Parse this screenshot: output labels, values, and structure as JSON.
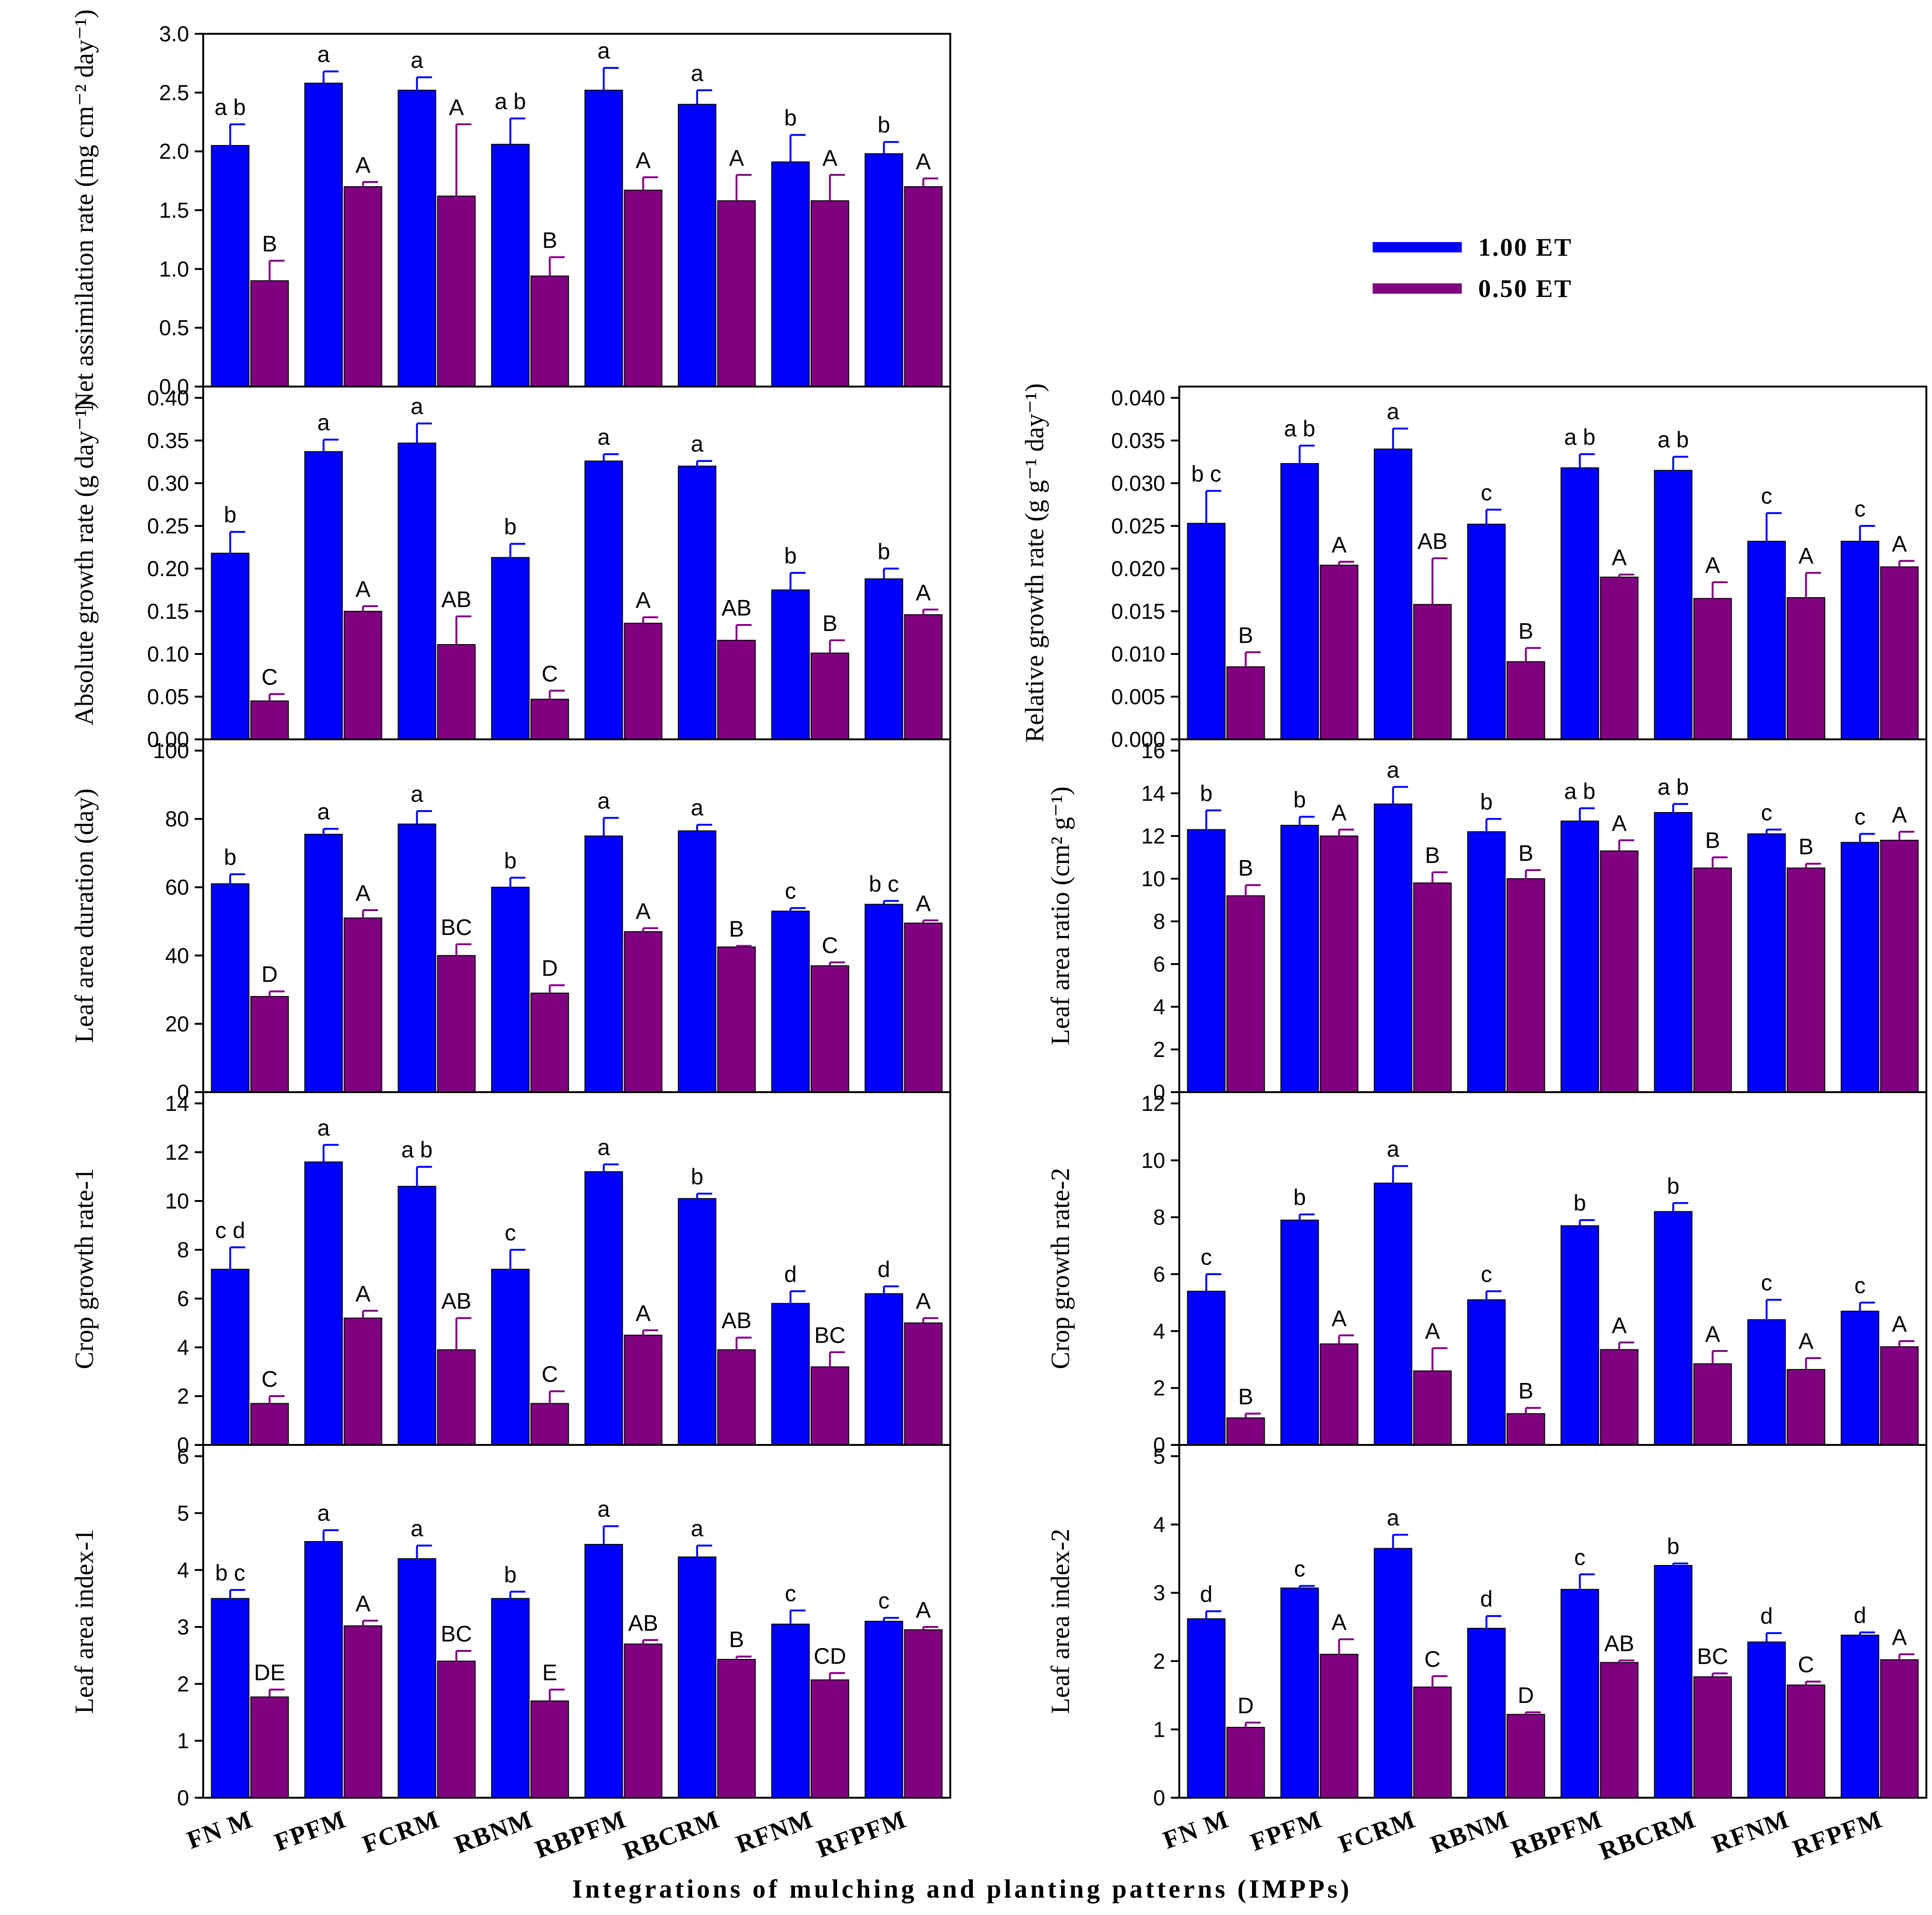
{
  "colors": {
    "series1": "#0000FF",
    "series2": "#800080",
    "axis": "#000000"
  },
  "chart_data": {
    "type": "bar",
    "x_title": "Integrations of mulching and planting patterns (IMPPs)",
    "categories": [
      "FN M",
      "FPFM",
      "FCRM",
      "RBNM",
      "RBPFM",
      "RBCRM",
      "RFNM",
      "RFPFM"
    ],
    "legend": [
      "1.00 ET",
      "0.50 ET"
    ],
    "panels": [
      {
        "id": "nar",
        "ylabel": "Net assimilation rate (mg cm⁻² day⁻¹)",
        "ylim": [
          0,
          3.0
        ],
        "ticks": [
          "0.0",
          "0.5",
          "1.0",
          "1.5",
          "2.0",
          "2.5",
          "3.0"
        ],
        "series": [
          {
            "name": "1.00 ET",
            "values": [
              2.05,
              2.58,
              2.52,
              2.06,
              2.52,
              2.4,
              1.91,
              1.98
            ],
            "err": [
              0.18,
              0.1,
              0.11,
              0.22,
              0.19,
              0.12,
              0.23,
              0.1
            ],
            "letters": [
              "a b",
              "a",
              "a",
              "a b",
              "a",
              "a",
              "b",
              "b"
            ]
          },
          {
            "name": "0.50 ET",
            "values": [
              0.9,
              1.7,
              1.62,
              0.94,
              1.67,
              1.58,
              1.58,
              1.7
            ],
            "err": [
              0.17,
              0.04,
              0.61,
              0.16,
              0.11,
              0.22,
              0.22,
              0.07
            ],
            "letters": [
              "B",
              "A",
              "A",
              "B",
              "A",
              "A",
              "A",
              "A"
            ]
          }
        ]
      },
      {
        "id": "rgr",
        "ylabel": "Relative growth rate (g g⁻¹ day⁻¹)",
        "ylim": [
          0,
          0.04
        ],
        "ticks": [
          "0.000",
          "0.005",
          "0.010",
          "0.015",
          "0.020",
          "0.025",
          "0.030",
          "0.035",
          "0.040"
        ],
        "series": [
          {
            "name": "1.00 ET",
            "values": [
              0.0253,
              0.0323,
              0.034,
              0.0252,
              0.0318,
              0.0315,
              0.0232,
              0.0232
            ],
            "err": [
              0.0038,
              0.0021,
              0.0024,
              0.0017,
              0.0016,
              0.0016,
              0.0033,
              0.0018
            ],
            "letters": [
              "b c",
              "a b",
              "a",
              "c",
              "a b",
              "a b",
              "c",
              "c"
            ]
          },
          {
            "name": "0.50 ET",
            "values": [
              0.0085,
              0.0204,
              0.0158,
              0.0091,
              0.019,
              0.0165,
              0.0166,
              0.0202
            ],
            "err": [
              0.0017,
              0.0004,
              0.0054,
              0.0016,
              0.0003,
              0.0019,
              0.0029,
              0.0007
            ],
            "letters": [
              "B",
              "A",
              "AB",
              "B",
              "A",
              "A",
              "A",
              "A"
            ]
          }
        ]
      },
      {
        "id": "agr",
        "ylabel": "Absolute growth rate (g day⁻¹)",
        "ylim": [
          0,
          0.4
        ],
        "ticks": [
          "0.00",
          "0.05",
          "0.10",
          "0.15",
          "0.20",
          "0.25",
          "0.30",
          "0.35",
          "0.40"
        ],
        "series": [
          {
            "name": "1.00 ET",
            "values": [
              0.218,
              0.337,
              0.347,
              0.213,
              0.326,
              0.32,
              0.175,
              0.188
            ],
            "err": [
              0.025,
              0.014,
              0.023,
              0.016,
              0.008,
              0.006,
              0.02,
              0.012
            ],
            "letters": [
              "b",
              "a",
              "a",
              "b",
              "a",
              "a",
              "b",
              "b"
            ]
          },
          {
            "name": "0.50 ET",
            "values": [
              0.045,
              0.15,
              0.111,
              0.047,
              0.136,
              0.116,
              0.101,
              0.146
            ],
            "err": [
              0.008,
              0.006,
              0.033,
              0.01,
              0.007,
              0.018,
              0.015,
              0.006
            ],
            "letters": [
              "C",
              "A",
              "AB",
              "C",
              "A",
              "AB",
              "B",
              "A"
            ]
          }
        ]
      },
      {
        "id": "lad",
        "ylabel": "Leaf area duration (day)",
        "ylim": [
          0,
          100
        ],
        "ticks": [
          "0",
          "20",
          "40",
          "60",
          "80",
          "100"
        ],
        "series": [
          {
            "name": "1.00 ET",
            "values": [
              61,
              75.5,
              78.5,
              60,
              75,
              76.5,
              53,
              55
            ],
            "err": [
              2.8,
              1.6,
              3.8,
              2.8,
              5.3,
              1.8,
              0.9,
              1.0
            ],
            "letters": [
              "b",
              "a",
              "a",
              "b",
              "a",
              "a",
              "c",
              "b c"
            ]
          },
          {
            "name": "0.50 ET",
            "values": [
              28,
              51,
              40,
              29,
              47,
              42.5,
              37,
              49.5
            ],
            "err": [
              1.5,
              2.3,
              3.3,
              2.3,
              1.0,
              0.3,
              1.0,
              0.8
            ],
            "letters": [
              "D",
              "A",
              "BC",
              "D",
              "A",
              "B",
              "C",
              "A"
            ]
          }
        ]
      },
      {
        "id": "lar",
        "ylabel": "Leaf area ratio (cm² g⁻¹)",
        "ylim": [
          0,
          16
        ],
        "ticks": [
          "0",
          "2",
          "4",
          "6",
          "8",
          "10",
          "12",
          "14",
          "16"
        ],
        "series": [
          {
            "name": "1.00 ET",
            "values": [
              12.3,
              12.5,
              13.5,
              12.2,
              12.7,
              13.1,
              12.1,
              11.7
            ],
            "err": [
              0.9,
              0.4,
              0.8,
              0.6,
              0.6,
              0.4,
              0.2,
              0.4
            ],
            "letters": [
              "b",
              "b",
              "a",
              "b",
              "a b",
              "a b",
              "c",
              "c"
            ]
          },
          {
            "name": "0.50 ET",
            "values": [
              9.2,
              12.0,
              9.8,
              10.0,
              11.3,
              10.5,
              10.5,
              11.8
            ],
            "err": [
              0.5,
              0.3,
              0.5,
              0.4,
              0.5,
              0.5,
              0.2,
              0.4
            ],
            "letters": [
              "B",
              "A",
              "B",
              "B",
              "A",
              "B",
              "B",
              "A"
            ]
          }
        ]
      },
      {
        "id": "cgr1",
        "ylabel": "Crop growth rate-1",
        "ylim": [
          0,
          14
        ],
        "ticks": [
          "0",
          "2",
          "4",
          "6",
          "8",
          "10",
          "12",
          "14"
        ],
        "series": [
          {
            "name": "1.00 ET",
            "values": [
              7.2,
              11.6,
              10.6,
              7.2,
              11.2,
              10.1,
              5.8,
              6.2
            ],
            "err": [
              0.9,
              0.7,
              0.8,
              0.8,
              0.3,
              0.2,
              0.5,
              0.3
            ],
            "letters": [
              "c d",
              "a",
              "a b",
              "c",
              "a",
              "b",
              "d",
              "d"
            ]
          },
          {
            "name": "0.50 ET",
            "values": [
              1.7,
              5.2,
              3.9,
              1.7,
              4.5,
              3.9,
              3.2,
              5.0
            ],
            "err": [
              0.3,
              0.3,
              1.3,
              0.5,
              0.2,
              0.5,
              0.6,
              0.2
            ],
            "letters": [
              "C",
              "A",
              "AB",
              "C",
              "A",
              "AB",
              "BC",
              "A"
            ]
          }
        ]
      },
      {
        "id": "cgr2",
        "ylabel": "Crop growth rate-2",
        "ylim": [
          0,
          12
        ],
        "ticks": [
          "0",
          "2",
          "4",
          "6",
          "8",
          "10",
          "12"
        ],
        "series": [
          {
            "name": "1.00 ET",
            "values": [
              5.4,
              7.9,
              9.2,
              5.1,
              7.7,
              8.2,
              4.4,
              4.7
            ],
            "err": [
              0.6,
              0.2,
              0.6,
              0.3,
              0.2,
              0.3,
              0.7,
              0.3
            ],
            "letters": [
              "c",
              "b",
              "a",
              "c",
              "b",
              "b",
              "c",
              "c"
            ]
          },
          {
            "name": "0.50 ET",
            "values": [
              0.95,
              3.55,
              2.6,
              1.1,
              3.35,
              2.85,
              2.65,
              3.45
            ],
            "err": [
              0.15,
              0.3,
              0.8,
              0.2,
              0.25,
              0.45,
              0.4,
              0.2
            ],
            "letters": [
              "B",
              "A",
              "A",
              "B",
              "A",
              "A",
              "A",
              "A"
            ]
          }
        ]
      },
      {
        "id": "lai1",
        "ylabel": "Leaf area index-1",
        "ylim": [
          0,
          6
        ],
        "ticks": [
          "0",
          "1",
          "2",
          "3",
          "4",
          "5",
          "6"
        ],
        "series": [
          {
            "name": "1.00 ET",
            "values": [
              3.5,
              4.5,
              4.2,
              3.5,
              4.45,
              4.23,
              3.05,
              3.1
            ],
            "err": [
              0.15,
              0.2,
              0.23,
              0.12,
              0.32,
              0.2,
              0.24,
              0.06
            ],
            "letters": [
              "b c",
              "a",
              "a",
              "b",
              "a",
              "a",
              "c",
              "c"
            ]
          },
          {
            "name": "0.50 ET",
            "values": [
              1.77,
              3.02,
              2.4,
              1.7,
              2.7,
              2.43,
              2.07,
              2.95
            ],
            "err": [
              0.13,
              0.09,
              0.18,
              0.2,
              0.07,
              0.05,
              0.12,
              0.05
            ],
            "letters": [
              "DE",
              "A",
              "BC",
              "E",
              "AB",
              "B",
              "CD",
              "A"
            ]
          }
        ]
      },
      {
        "id": "lai2",
        "ylabel": "Leaf area index-2",
        "ylim": [
          0,
          5
        ],
        "ticks": [
          "0",
          "1",
          "2",
          "3",
          "4",
          "5"
        ],
        "series": [
          {
            "name": "1.00 ET",
            "values": [
              2.62,
              3.07,
              3.65,
              2.48,
              3.05,
              3.4,
              2.28,
              2.38
            ],
            "err": [
              0.11,
              0.03,
              0.2,
              0.18,
              0.22,
              0.03,
              0.13,
              0.04
            ],
            "letters": [
              "d",
              "c",
              "a",
              "d",
              "c",
              "b",
              "d",
              "d"
            ]
          },
          {
            "name": "0.50 ET",
            "values": [
              1.03,
              2.1,
              1.62,
              1.22,
              1.98,
              1.77,
              1.65,
              2.02
            ],
            "err": [
              0.07,
              0.22,
              0.16,
              0.03,
              0.03,
              0.05,
              0.05,
              0.08
            ],
            "letters": [
              "D",
              "A",
              "C",
              "D",
              "AB",
              "BC",
              "C",
              "A"
            ]
          }
        ]
      }
    ]
  }
}
